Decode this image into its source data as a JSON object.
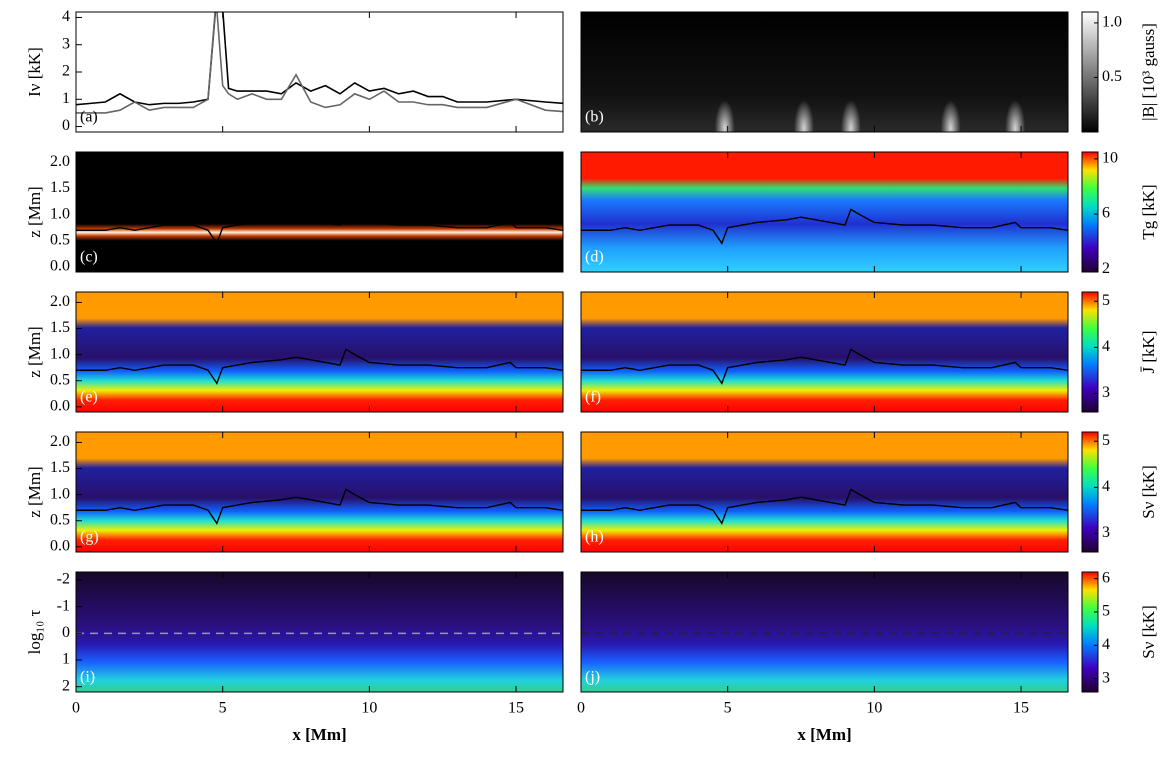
{
  "chart_data": [
    {
      "type": "line",
      "label": "(a)",
      "ylabel": "Iν [kK]",
      "xlim": [
        0,
        16.6
      ],
      "xticks": [
        0,
        5,
        10,
        15
      ],
      "ylim": [
        -0.2,
        4.2
      ],
      "yticks": [
        0,
        1,
        2,
        3,
        4
      ],
      "x": [
        0,
        0.5,
        1,
        1.5,
        2,
        2.5,
        3,
        3.5,
        4,
        4.5,
        4.75,
        4.8,
        5.0,
        5.2,
        5.5,
        6,
        6.5,
        7,
        7.5,
        8,
        8.5,
        9,
        9.5,
        10,
        10.5,
        11,
        11.5,
        12,
        12.5,
        13,
        14,
        15,
        16,
        16.6
      ],
      "series": [
        {
          "color": "#000000",
          "values": [
            0.8,
            0.85,
            0.9,
            1.2,
            0.9,
            0.8,
            0.85,
            0.85,
            0.9,
            1.0,
            4.2,
            4.3,
            4.3,
            1.4,
            1.3,
            1.3,
            1.3,
            1.2,
            1.6,
            1.3,
            1.5,
            1.2,
            1.6,
            1.3,
            1.4,
            1.2,
            1.3,
            1.1,
            1.1,
            0.9,
            0.9,
            1.0,
            0.9,
            0.85
          ]
        },
        {
          "color": "#666666",
          "values": [
            0.5,
            0.5,
            0.5,
            0.6,
            0.9,
            0.6,
            0.7,
            0.7,
            0.7,
            1.0,
            4.3,
            4.3,
            1.5,
            1.2,
            1.0,
            1.2,
            1.0,
            1.0,
            1.9,
            0.9,
            0.7,
            0.8,
            1.2,
            1.0,
            1.3,
            0.9,
            0.9,
            0.8,
            0.8,
            0.7,
            0.7,
            1.0,
            0.6,
            0.55
          ]
        }
      ]
    },
    {
      "type": "heatmap",
      "label": "(b)",
      "xlim": [
        0,
        16.6
      ],
      "xticks": [
        0,
        5,
        10,
        15
      ],
      "ylim": [
        -0.1,
        2.2
      ],
      "colorbar": {
        "label": "|B| [10³ gauss]",
        "lim": [
          0,
          1.1
        ],
        "ticks": [
          0.5,
          {
            "value": 1,
            "label": "1.0"
          }
        ]
      }
    },
    {
      "type": "heatmap",
      "label": "(c)",
      "ylabel": "z [Mm]",
      "xlim": [
        0,
        16.6
      ],
      "xticks": [
        0,
        5,
        10,
        15
      ],
      "ylim": [
        -0.1,
        2.2
      ],
      "overlay": true,
      "yticks": [
        {
          "value": 0,
          "label": "0.0"
        },
        0.5,
        {
          "value": 1,
          "label": "1.0"
        },
        1.5,
        {
          "value": 2,
          "label": "2.0"
        }
      ]
    },
    {
      "type": "heatmap",
      "label": "(d)",
      "xlim": [
        0,
        16.6
      ],
      "xticks": [
        0,
        5,
        10,
        15
      ],
      "ylim": [
        -0.1,
        2.2
      ],
      "overlay": true,
      "colorbar": {
        "label": "Tg [kK]",
        "lim": [
          1.8,
          10.5
        ],
        "ticks": [
          2,
          6,
          10
        ]
      }
    },
    {
      "type": "heatmap",
      "label": "(e)",
      "ylabel": "z [Mm]",
      "xlim": [
        0,
        16.6
      ],
      "xticks": [
        0,
        5,
        10,
        15
      ],
      "ylim": [
        -0.1,
        2.2
      ],
      "overlay": true,
      "yticks": [
        {
          "value": 0,
          "label": "0.0"
        },
        0.5,
        {
          "value": 1,
          "label": "1.0"
        },
        1.5,
        {
          "value": 2,
          "label": "2.0"
        }
      ]
    },
    {
      "type": "heatmap",
      "label": "(f)",
      "xlim": [
        0,
        16.6
      ],
      "xticks": [
        0,
        5,
        10,
        15
      ],
      "ylim": [
        -0.1,
        2.2
      ],
      "overlay": true,
      "colorbar": {
        "label": "J̄ [kK]",
        "lim": [
          2.6,
          5.2
        ],
        "ticks": [
          3,
          4,
          5
        ]
      }
    },
    {
      "type": "heatmap",
      "label": "(g)",
      "ylabel": "z [Mm]",
      "xlim": [
        0,
        16.6
      ],
      "xticks": [
        0,
        5,
        10,
        15
      ],
      "ylim": [
        -0.1,
        2.2
      ],
      "overlay": true,
      "yticks": [
        {
          "value": 0,
          "label": "0.0"
        },
        0.5,
        {
          "value": 1,
          "label": "1.0"
        },
        1.5,
        {
          "value": 2,
          "label": "2.0"
        }
      ]
    },
    {
      "type": "heatmap",
      "label": "(h)",
      "xlim": [
        0,
        16.6
      ],
      "xticks": [
        0,
        5,
        10,
        15
      ],
      "ylim": [
        -0.1,
        2.2
      ],
      "overlay": true,
      "colorbar": {
        "label": "Sν [kK]",
        "lim": [
          2.6,
          5.2
        ],
        "ticks": [
          3,
          4,
          5
        ]
      }
    },
    {
      "type": "heatmap",
      "label": "(i)",
      "ylabel": "log₁₀ τ",
      "xlabel": "x [Mm]",
      "xlim": [
        0,
        16.6
      ],
      "xticks": [
        0,
        5,
        10,
        15
      ],
      "ylim": [
        2.2,
        -2.3
      ],
      "yticks": [
        -2,
        -1,
        0,
        1,
        2
      ],
      "hline": 0
    },
    {
      "type": "heatmap",
      "label": "(j)",
      "xlabel": "x [Mm]",
      "xlim": [
        0,
        16.6
      ],
      "xticks": [
        0,
        5,
        10,
        15
      ],
      "ylim": [
        2.2,
        -2.3
      ],
      "hline": 0,
      "colorbar": {
        "label": "Sν [kK]",
        "lim": [
          2.6,
          6.2
        ],
        "ticks": [
          3,
          4,
          5,
          6
        ]
      }
    }
  ],
  "tau_unity": {
    "x": [
      0,
      1,
      1.5,
      2,
      2.5,
      3,
      3.5,
      4,
      4.5,
      4.8,
      5,
      5.5,
      6,
      7,
      7.5,
      8,
      8.5,
      9,
      9.2,
      9.5,
      10,
      11,
      12,
      13,
      14,
      14.8,
      15,
      16,
      16.6
    ],
    "values": [
      0.7,
      0.7,
      0.75,
      0.7,
      0.75,
      0.8,
      0.8,
      0.8,
      0.7,
      0.45,
      0.75,
      0.8,
      0.85,
      0.9,
      0.95,
      0.9,
      0.85,
      0.8,
      1.1,
      1.0,
      0.85,
      0.8,
      0.8,
      0.75,
      0.75,
      0.85,
      0.75,
      0.75,
      0.7
    ]
  }
}
